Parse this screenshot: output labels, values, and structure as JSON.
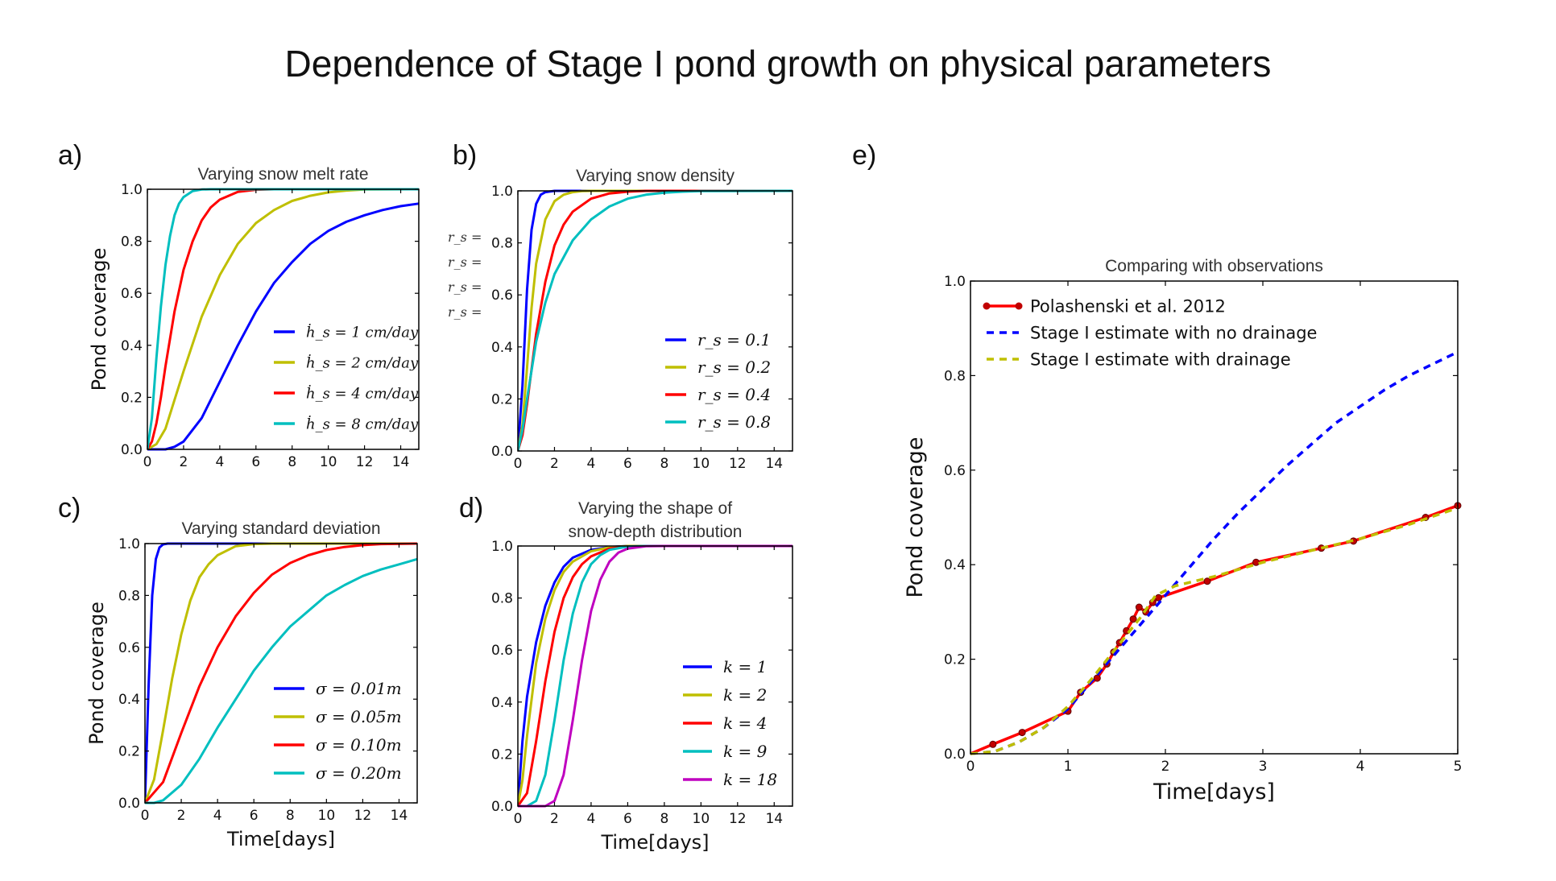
{
  "title": "Dependence of Stage I pond growth on physical parameters",
  "panel_letters": [
    "a)",
    "b)",
    "c)",
    "d)",
    "e)"
  ],
  "colors": {
    "blue": "#0000ff",
    "olive": "#bfbf00",
    "red": "#ff0000",
    "teal": "#00bfbf",
    "magenta": "#bf00bf",
    "obs_red": "#ff0000",
    "obs_marker": "#c00000"
  },
  "clipped_fragments": [
    "r_s =",
    "r_s =",
    "r_s =",
    "r_s ="
  ],
  "chart_data": [
    {
      "id": "a",
      "type": "line",
      "title": "Varying snow melt rate",
      "xlabel": "",
      "ylabel": "Pond coverage",
      "xlim": [
        0,
        15
      ],
      "ylim": [
        0,
        1.0
      ],
      "xticks": [
        0,
        2,
        4,
        6,
        8,
        10,
        12,
        14
      ],
      "yticks": [
        0.0,
        0.2,
        0.4,
        0.6,
        0.8,
        1.0
      ],
      "series": [
        {
          "name": "ḣ_s = 1 cm/day",
          "color": "#0000ff",
          "x": [
            0,
            1,
            1.5,
            2,
            3,
            4,
            5,
            6,
            7,
            8,
            9,
            10,
            11,
            12,
            13,
            14,
            15
          ],
          "y": [
            0,
            0,
            0.01,
            0.03,
            0.12,
            0.26,
            0.4,
            0.53,
            0.64,
            0.72,
            0.79,
            0.84,
            0.875,
            0.9,
            0.92,
            0.935,
            0.945
          ]
        },
        {
          "name": "ḣ_s = 2 cm/day",
          "color": "#bfbf00",
          "x": [
            0,
            0.5,
            1,
            1.5,
            2,
            3,
            4,
            5,
            6,
            7,
            8,
            9,
            10,
            11,
            12,
            15
          ],
          "y": [
            0,
            0.02,
            0.08,
            0.19,
            0.3,
            0.51,
            0.67,
            0.79,
            0.87,
            0.92,
            0.955,
            0.975,
            0.988,
            0.995,
            0.999,
            1.0
          ]
        },
        {
          "name": "ḣ_s = 4 cm/day",
          "color": "#ff0000",
          "x": [
            0,
            0.25,
            0.5,
            0.75,
            1,
            1.5,
            2,
            2.5,
            3,
            3.5,
            4,
            5,
            6,
            7,
            15
          ],
          "y": [
            0,
            0.03,
            0.1,
            0.2,
            0.32,
            0.53,
            0.69,
            0.8,
            0.88,
            0.93,
            0.96,
            0.99,
            0.998,
            1.0,
            1.0
          ]
        },
        {
          "name": "ḣ_s = 8 cm/day",
          "color": "#00bfbf",
          "x": [
            0,
            0.25,
            0.5,
            0.75,
            1,
            1.25,
            1.5,
            1.75,
            2,
            2.5,
            3,
            3.5,
            15
          ],
          "y": [
            0,
            0.12,
            0.35,
            0.55,
            0.71,
            0.82,
            0.9,
            0.945,
            0.97,
            0.993,
            0.999,
            1.0,
            1.0
          ]
        }
      ],
      "legend_position": "lower-right"
    },
    {
      "id": "b",
      "type": "line",
      "title": "Varying snow density",
      "xlabel": "",
      "ylabel": "",
      "xlim": [
        0,
        15
      ],
      "ylim": [
        0,
        1.0
      ],
      "xticks": [
        0,
        2,
        4,
        6,
        8,
        10,
        12,
        14
      ],
      "yticks": [
        0.0,
        0.2,
        0.4,
        0.6,
        0.8,
        1.0
      ],
      "series": [
        {
          "name": "r_s = 0.1",
          "color": "#0000ff",
          "x": [
            0,
            0.25,
            0.5,
            0.75,
            1,
            1.25,
            1.5,
            2,
            2.5,
            15
          ],
          "y": [
            0,
            0.25,
            0.62,
            0.85,
            0.95,
            0.985,
            0.995,
            1.0,
            1.0,
            1.0
          ]
        },
        {
          "name": "r_s = 0.2",
          "color": "#bfbf00",
          "x": [
            0,
            0.25,
            0.5,
            0.75,
            1,
            1.5,
            2,
            2.5,
            3,
            3.5,
            4,
            15
          ],
          "y": [
            0,
            0.1,
            0.32,
            0.55,
            0.72,
            0.89,
            0.96,
            0.985,
            0.995,
            0.999,
            1.0,
            1.0
          ]
        },
        {
          "name": "r_s = 0.4",
          "color": "#ff0000",
          "x": [
            0,
            0.25,
            0.5,
            1,
            1.5,
            2,
            2.5,
            3,
            4,
            5,
            6,
            7,
            15
          ],
          "y": [
            0,
            0.06,
            0.18,
            0.45,
            0.65,
            0.79,
            0.87,
            0.92,
            0.97,
            0.99,
            0.997,
            1.0,
            1.0
          ]
        },
        {
          "name": "r_s = 0.8",
          "color": "#00bfbf",
          "x": [
            0,
            0.25,
            0.5,
            1,
            1.5,
            2,
            3,
            4,
            5,
            6,
            7,
            8,
            9,
            10,
            15
          ],
          "y": [
            0,
            0.08,
            0.2,
            0.42,
            0.57,
            0.68,
            0.81,
            0.89,
            0.94,
            0.97,
            0.985,
            0.993,
            0.997,
            0.999,
            1.0
          ]
        }
      ],
      "legend_position": "lower-right"
    },
    {
      "id": "c",
      "type": "line",
      "title": "Varying standard deviation",
      "xlabel": "Time[days]",
      "ylabel": "Pond coverage",
      "xlim": [
        0,
        15
      ],
      "ylim": [
        0,
        1.0
      ],
      "xticks": [
        0,
        2,
        4,
        6,
        8,
        10,
        12,
        14
      ],
      "yticks": [
        0.0,
        0.2,
        0.4,
        0.6,
        0.8,
        1.0
      ],
      "series": [
        {
          "name": "σ = 0.01m",
          "color": "#0000ff",
          "x": [
            0,
            0.2,
            0.4,
            0.6,
            0.8,
            1,
            1.25,
            15
          ],
          "y": [
            0,
            0.45,
            0.8,
            0.94,
            0.985,
            0.997,
            1.0,
            1.0
          ]
        },
        {
          "name": "σ = 0.05m",
          "color": "#bfbf00",
          "x": [
            0,
            0.5,
            1,
            1.5,
            2,
            2.5,
            3,
            3.5,
            4,
            5,
            6,
            7,
            15
          ],
          "y": [
            0,
            0.09,
            0.28,
            0.48,
            0.65,
            0.78,
            0.87,
            0.92,
            0.955,
            0.99,
            0.998,
            1.0,
            1.0
          ]
        },
        {
          "name": "σ = 0.10m",
          "color": "#ff0000",
          "x": [
            0,
            1,
            2,
            3,
            4,
            5,
            6,
            7,
            8,
            9,
            10,
            11,
            12,
            13,
            15
          ],
          "y": [
            0,
            0.08,
            0.27,
            0.45,
            0.6,
            0.72,
            0.81,
            0.88,
            0.925,
            0.955,
            0.975,
            0.987,
            0.994,
            0.998,
            1.0
          ]
        },
        {
          "name": "σ = 0.20m",
          "color": "#00bfbf",
          "x": [
            0,
            0.5,
            1,
            2,
            3,
            4,
            5,
            6,
            7,
            8,
            9,
            10,
            11,
            12,
            13,
            14,
            15
          ],
          "y": [
            0,
            0,
            0.01,
            0.07,
            0.17,
            0.29,
            0.4,
            0.51,
            0.6,
            0.68,
            0.74,
            0.8,
            0.84,
            0.875,
            0.9,
            0.92,
            0.94
          ]
        }
      ],
      "legend_position": "lower-right"
    },
    {
      "id": "d",
      "type": "line",
      "title": "Varying the shape of snow-depth distribution",
      "title_lines": [
        "Varying the shape of",
        "snow-depth distribution"
      ],
      "xlabel": "Time[days]",
      "ylabel": "",
      "xlim": [
        0,
        15
      ],
      "ylim": [
        0,
        1.0
      ],
      "xticks": [
        0,
        2,
        4,
        6,
        8,
        10,
        12,
        14
      ],
      "yticks": [
        0.0,
        0.2,
        0.4,
        0.6,
        0.8,
        1.0
      ],
      "series": [
        {
          "name": "k = 1",
          "color": "#0000ff",
          "x": [
            0,
            0.25,
            0.5,
            1,
            1.5,
            2,
            2.5,
            3,
            4,
            5,
            6,
            15
          ],
          "y": [
            0,
            0.25,
            0.42,
            0.63,
            0.77,
            0.86,
            0.92,
            0.955,
            0.985,
            0.996,
            1.0,
            1.0
          ]
        },
        {
          "name": "k = 2",
          "color": "#bfbf00",
          "x": [
            0,
            0.25,
            0.5,
            1,
            1.5,
            2,
            2.5,
            3,
            4,
            5,
            6,
            15
          ],
          "y": [
            0,
            0.1,
            0.27,
            0.55,
            0.72,
            0.83,
            0.9,
            0.94,
            0.98,
            0.995,
            1.0,
            1.0
          ]
        },
        {
          "name": "k = 4",
          "color": "#ff0000",
          "x": [
            0,
            0.5,
            1,
            1.5,
            2,
            2.5,
            3,
            3.5,
            4,
            5,
            6,
            7,
            15
          ],
          "y": [
            0,
            0.05,
            0.25,
            0.48,
            0.67,
            0.8,
            0.88,
            0.93,
            0.96,
            0.99,
            0.998,
            1.0,
            1.0
          ]
        },
        {
          "name": "k = 9",
          "color": "#00bfbf",
          "x": [
            0,
            0.5,
            1,
            1.5,
            2,
            2.5,
            3,
            3.5,
            4,
            4.5,
            5,
            6,
            7,
            15
          ],
          "y": [
            0,
            0,
            0.02,
            0.12,
            0.33,
            0.56,
            0.74,
            0.86,
            0.93,
            0.965,
            0.985,
            0.998,
            1.0,
            1.0
          ]
        },
        {
          "name": "k = 18",
          "color": "#bf00bf",
          "x": [
            0,
            1,
            1.5,
            2,
            2.5,
            3,
            3.5,
            4,
            4.5,
            5,
            5.5,
            6,
            7,
            8,
            15
          ],
          "y": [
            0,
            0,
            0,
            0.02,
            0.12,
            0.33,
            0.56,
            0.75,
            0.87,
            0.94,
            0.975,
            0.99,
            0.999,
            1.0,
            1.0
          ]
        }
      ],
      "legend_position": "lower-right"
    },
    {
      "id": "e",
      "type": "line",
      "title": "Comparing with observations",
      "xlabel": "Time[days]",
      "ylabel": "Pond coverage",
      "xlim": [
        0,
        5
      ],
      "ylim": [
        0,
        1.0
      ],
      "xticks": [
        0,
        1,
        2,
        3,
        4,
        5
      ],
      "yticks": [
        0.0,
        0.2,
        0.4,
        0.6,
        0.8,
        1.0
      ],
      "series": [
        {
          "name": "Polashenski et al. 2012",
          "color": "#ff0000",
          "style": "solid-markers",
          "x": [
            0,
            0.23,
            0.53,
            1.0,
            1.13,
            1.3,
            1.4,
            1.47,
            1.53,
            1.6,
            1.67,
            1.73,
            1.8,
            1.87,
            1.93,
            2.43,
            2.93,
            3.6,
            3.93,
            4.67,
            5.0
          ],
          "y": [
            0,
            0.02,
            0.045,
            0.09,
            0.13,
            0.16,
            0.19,
            0.215,
            0.235,
            0.26,
            0.285,
            0.31,
            0.3,
            0.32,
            0.33,
            0.365,
            0.405,
            0.435,
            0.45,
            0.5,
            0.525
          ]
        },
        {
          "name": "Stage I estimate with no drainage",
          "color": "#0000ff",
          "style": "dashed",
          "x": [
            0,
            0.25,
            0.5,
            0.75,
            1.0,
            1.25,
            1.5,
            1.75,
            2.0,
            2.25,
            2.5,
            2.75,
            3.0,
            3.25,
            3.5,
            3.75,
            4.0,
            4.25,
            4.5,
            4.75,
            5.0
          ],
          "y": [
            0,
            0.005,
            0.025,
            0.055,
            0.095,
            0.155,
            0.215,
            0.275,
            0.335,
            0.395,
            0.455,
            0.51,
            0.56,
            0.61,
            0.655,
            0.7,
            0.735,
            0.77,
            0.8,
            0.825,
            0.85
          ]
        },
        {
          "name": "Stage I estimate with drainage",
          "color": "#bfbf00",
          "style": "dashed",
          "x": [
            0,
            0.25,
            0.5,
            0.75,
            1.0,
            1.25,
            1.5,
            1.75,
            1.9,
            2.1,
            2.5,
            3.0,
            3.5,
            4.0,
            4.5,
            5.0
          ],
          "y": [
            0,
            0.005,
            0.025,
            0.055,
            0.1,
            0.16,
            0.225,
            0.29,
            0.335,
            0.355,
            0.375,
            0.405,
            0.43,
            0.455,
            0.485,
            0.52
          ]
        }
      ],
      "legend_position": "top-left"
    }
  ]
}
